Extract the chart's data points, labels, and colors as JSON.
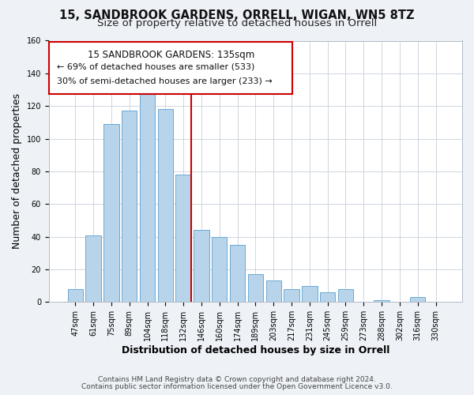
{
  "title": "15, SANDBROOK GARDENS, ORRELL, WIGAN, WN5 8TZ",
  "subtitle": "Size of property relative to detached houses in Orrell",
  "xlabel": "Distribution of detached houses by size in Orrell",
  "ylabel": "Number of detached properties",
  "bar_labels": [
    "47sqm",
    "61sqm",
    "75sqm",
    "89sqm",
    "104sqm",
    "118sqm",
    "132sqm",
    "146sqm",
    "160sqm",
    "174sqm",
    "189sqm",
    "203sqm",
    "217sqm",
    "231sqm",
    "245sqm",
    "259sqm",
    "273sqm",
    "288sqm",
    "302sqm",
    "316sqm",
    "330sqm"
  ],
  "bar_heights": [
    8,
    41,
    109,
    117,
    128,
    118,
    78,
    44,
    40,
    35,
    17,
    13,
    8,
    10,
    6,
    8,
    0,
    1,
    0,
    3,
    0
  ],
  "bar_color": "#b8d4ea",
  "bar_edge_color": "#6aaad4",
  "vline_color": "#cc0000",
  "annotation_title": "15 SANDBROOK GARDENS: 135sqm",
  "annotation_line1": "← 69% of detached houses are smaller (533)",
  "annotation_line2": "30% of semi-detached houses are larger (233) →",
  "annotation_box_color": "#ffffff",
  "annotation_box_edge": "#cc0000",
  "ylim": [
    0,
    160
  ],
  "yticks": [
    0,
    20,
    40,
    60,
    80,
    100,
    120,
    140,
    160
  ],
  "footer_line1": "Contains HM Land Registry data © Crown copyright and database right 2024.",
  "footer_line2": "Contains public sector information licensed under the Open Government Licence v3.0.",
  "bg_color": "#eef2f7",
  "plot_bg_color": "#ffffff",
  "title_fontsize": 10.5,
  "subtitle_fontsize": 9.5,
  "axis_label_fontsize": 9,
  "tick_fontsize": 7,
  "annotation_title_fontsize": 8.5,
  "annotation_body_fontsize": 8,
  "footer_fontsize": 6.5
}
